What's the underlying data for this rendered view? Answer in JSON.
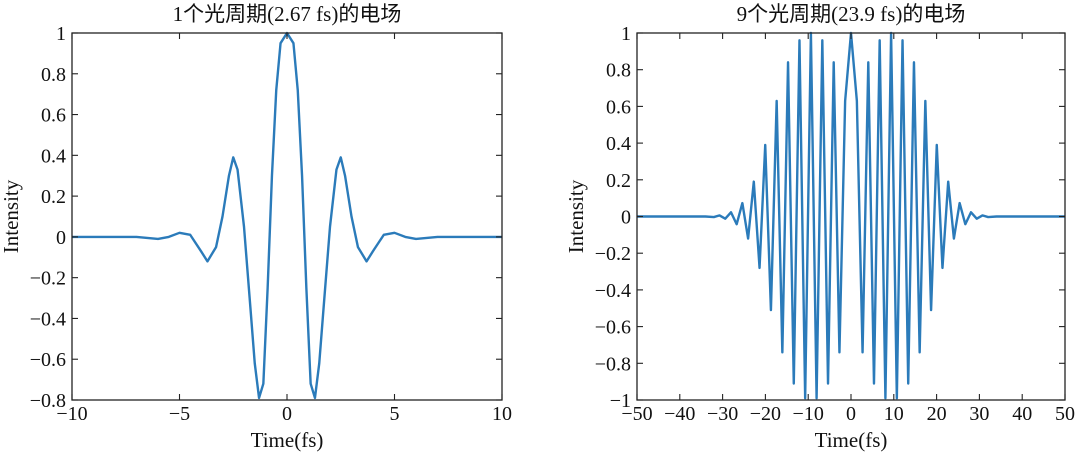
{
  "chart_data": [
    {
      "type": "line",
      "title": "1个光周期(2.67 fs)的电场",
      "xlabel": "Time(fs)",
      "ylabel": "Intensity",
      "xlim": [
        -10,
        10
      ],
      "ylim": [
        -0.8,
        1
      ],
      "xticks": [
        -10,
        -5,
        0,
        5,
        10
      ],
      "yticks": [
        -0.8,
        -0.6,
        -0.4,
        -0.2,
        0,
        0.2,
        0.4,
        0.6,
        0.8,
        1
      ],
      "xtick_labels": [
        "−10",
        "−5",
        "0",
        "5",
        "10"
      ],
      "ytick_labels": [
        "−0.8",
        "−0.6",
        "−0.4",
        "−0.2",
        "0",
        "0.2",
        "0.4",
        "0.6",
        "0.8",
        "1"
      ],
      "grid": false,
      "series": [
        {
          "color": "#2b7bba",
          "x": [
            -10,
            -9,
            -8,
            -7,
            -6,
            -5.5,
            -5,
            -4.5,
            -4,
            -3.7,
            -3.3,
            -3,
            -2.7,
            -2.5,
            -2.3,
            -2,
            -1.7,
            -1.5,
            -1.3,
            -1.1,
            -0.9,
            -0.7,
            -0.5,
            -0.3,
            0,
            0.3,
            0.5,
            0.7,
            0.9,
            1.1,
            1.3,
            1.5,
            1.7,
            2,
            2.3,
            2.5,
            2.7,
            3,
            3.3,
            3.7,
            4,
            4.5,
            5,
            5.5,
            6,
            7,
            8,
            9,
            10
          ],
          "y": [
            0,
            0,
            0,
            0,
            -0.01,
            0,
            0.02,
            0.01,
            -0.07,
            -0.12,
            -0.05,
            0.1,
            0.3,
            0.39,
            0.33,
            0.05,
            -0.35,
            -0.62,
            -0.79,
            -0.72,
            -0.25,
            0.3,
            0.72,
            0.95,
            1,
            0.95,
            0.72,
            0.3,
            -0.25,
            -0.72,
            -0.79,
            -0.62,
            -0.35,
            0.05,
            0.33,
            0.39,
            0.3,
            0.1,
            -0.05,
            -0.12,
            -0.07,
            0.01,
            0.02,
            0,
            -0.01,
            0,
            0,
            0,
            0
          ]
        }
      ]
    },
    {
      "type": "line",
      "title": "9个光周期(23.9 fs)的电场",
      "xlabel": "Time(fs)",
      "ylabel": "Intensity",
      "xlim": [
        -50,
        50
      ],
      "ylim": [
        -1,
        1
      ],
      "xticks": [
        -50,
        -40,
        -30,
        -20,
        -10,
        0,
        10,
        20,
        30,
        40,
        50
      ],
      "yticks": [
        -1,
        -0.8,
        -0.6,
        -0.4,
        -0.2,
        0,
        0.2,
        0.4,
        0.6,
        0.8,
        1
      ],
      "xtick_labels": [
        "−50",
        "−40",
        "−30",
        "−20",
        "−10",
        "0",
        "10",
        "20",
        "30",
        "40",
        "50"
      ],
      "ytick_labels": [
        "−1",
        "−0.8",
        "−0.6",
        "−0.4",
        "−0.2",
        "0",
        "0.2",
        "0.4",
        "0.6",
        "0.8",
        "1"
      ],
      "grid": false,
      "series": [
        {
          "color": "#2b7bba",
          "x": [
            -50,
            -40,
            -34,
            -32.04,
            -30.71,
            -29.38,
            -28.04,
            -26.71,
            -25.38,
            -24.04,
            -22.71,
            -21.37,
            -20.04,
            -18.71,
            -17.37,
            -16.04,
            -14.71,
            -13.37,
            -12.04,
            -10.71,
            -9.37,
            -8.04,
            -6.7,
            -5.37,
            -4.04,
            -2.7,
            -1.37,
            0,
            1.37,
            2.7,
            4.04,
            5.37,
            6.7,
            8.04,
            9.37,
            10.71,
            12.04,
            13.37,
            14.71,
            16.04,
            17.37,
            18.71,
            20.04,
            21.37,
            22.71,
            24.04,
            25.38,
            26.71,
            28.04,
            29.38,
            30.71,
            32.04,
            34,
            40,
            50
          ],
          "y": [
            0,
            0,
            0,
            -0.003,
            0.006,
            -0.012,
            0.023,
            -0.042,
            0.073,
            -0.12,
            0.19,
            -0.28,
            0.39,
            -0.51,
            0.63,
            -0.74,
            0.84,
            -0.91,
            0.96,
            -0.99,
            1,
            -0.99,
            0.96,
            -0.91,
            0.84,
            -0.74,
            0.63,
            1,
            0.63,
            -0.74,
            0.84,
            -0.91,
            0.96,
            -0.99,
            1,
            -0.99,
            0.96,
            -0.91,
            0.84,
            -0.74,
            0.63,
            -0.51,
            0.39,
            -0.28,
            0.19,
            -0.12,
            0.073,
            -0.042,
            0.023,
            -0.012,
            0.006,
            -0.003,
            0,
            0,
            0
          ]
        }
      ]
    }
  ]
}
